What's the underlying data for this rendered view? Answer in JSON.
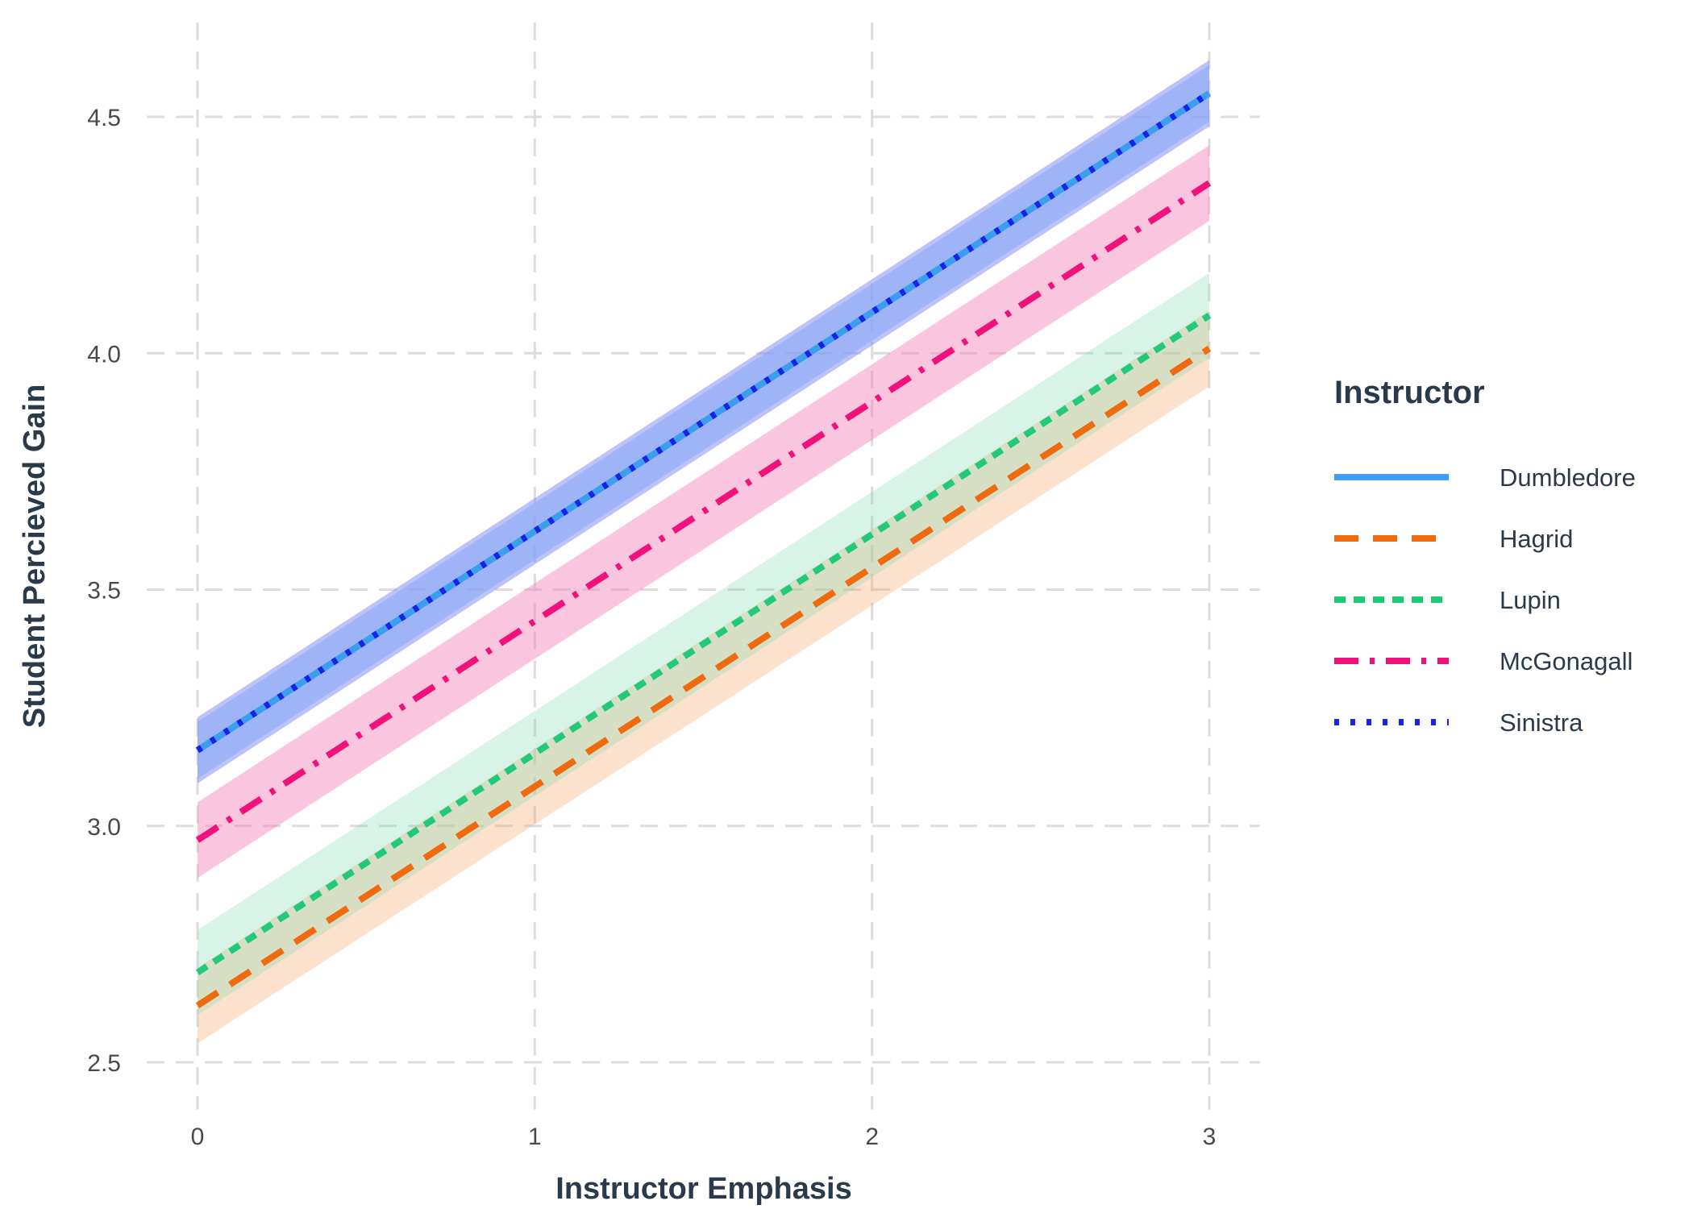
{
  "chart_data": {
    "type": "line",
    "title": "",
    "xlabel": "Instructor Emphasis",
    "ylabel": "Student Percieved Gain",
    "xlim": [
      -0.15,
      3.15
    ],
    "ylim": [
      2.4,
      4.7
    ],
    "x_ticks": [
      0,
      1,
      2,
      3
    ],
    "y_ticks": [
      2.5,
      3.0,
      3.5,
      4.0,
      4.5
    ],
    "x_tick_labels": [
      "0",
      "1",
      "2",
      "3"
    ],
    "y_tick_labels": [
      "2.5",
      "3.0",
      "3.5",
      "4.0",
      "4.5"
    ],
    "grid": true,
    "legend": {
      "title": "Instructor",
      "position": "right"
    },
    "series": [
      {
        "name": "Dumbledore",
        "color": "#3d9ef0",
        "band_color": "#9fd0f5",
        "band_opacity": 0.6,
        "line_style": "solid",
        "x": [
          0,
          3
        ],
        "y": [
          3.16,
          4.55
        ],
        "lower": [
          3.1,
          4.49
        ],
        "upper": [
          3.22,
          4.61
        ]
      },
      {
        "name": "Hagrid",
        "color": "#f06a10",
        "band_color": "#f7a96f",
        "band_opacity": 0.35,
        "line_style": "dashed",
        "x": [
          0,
          3
        ],
        "y": [
          2.62,
          4.01
        ],
        "lower": [
          2.54,
          3.93
        ],
        "upper": [
          2.7,
          4.09
        ]
      },
      {
        "name": "Lupin",
        "color": "#23c97a",
        "band_color": "#7fdcb0",
        "band_opacity": 0.3,
        "line_style": "short-dash",
        "x": [
          0,
          3
        ],
        "y": [
          2.69,
          4.08
        ],
        "lower": [
          2.6,
          3.99
        ],
        "upper": [
          2.78,
          4.17
        ]
      },
      {
        "name": "McGonagall",
        "color": "#f0117a",
        "band_color": "#f47fb8",
        "band_opacity": 0.45,
        "line_style": "dash-dot",
        "x": [
          0,
          3
        ],
        "y": [
          2.97,
          4.36
        ],
        "lower": [
          2.89,
          4.28
        ],
        "upper": [
          3.05,
          4.44
        ]
      },
      {
        "name": "Sinistra",
        "color": "#1a22e6",
        "band_color": "#7a86f5",
        "band_opacity": 0.5,
        "line_style": "dotted",
        "x": [
          0,
          3
        ],
        "y": [
          3.16,
          4.55
        ],
        "lower": [
          3.09,
          4.48
        ],
        "upper": [
          3.23,
          4.62
        ]
      }
    ]
  }
}
